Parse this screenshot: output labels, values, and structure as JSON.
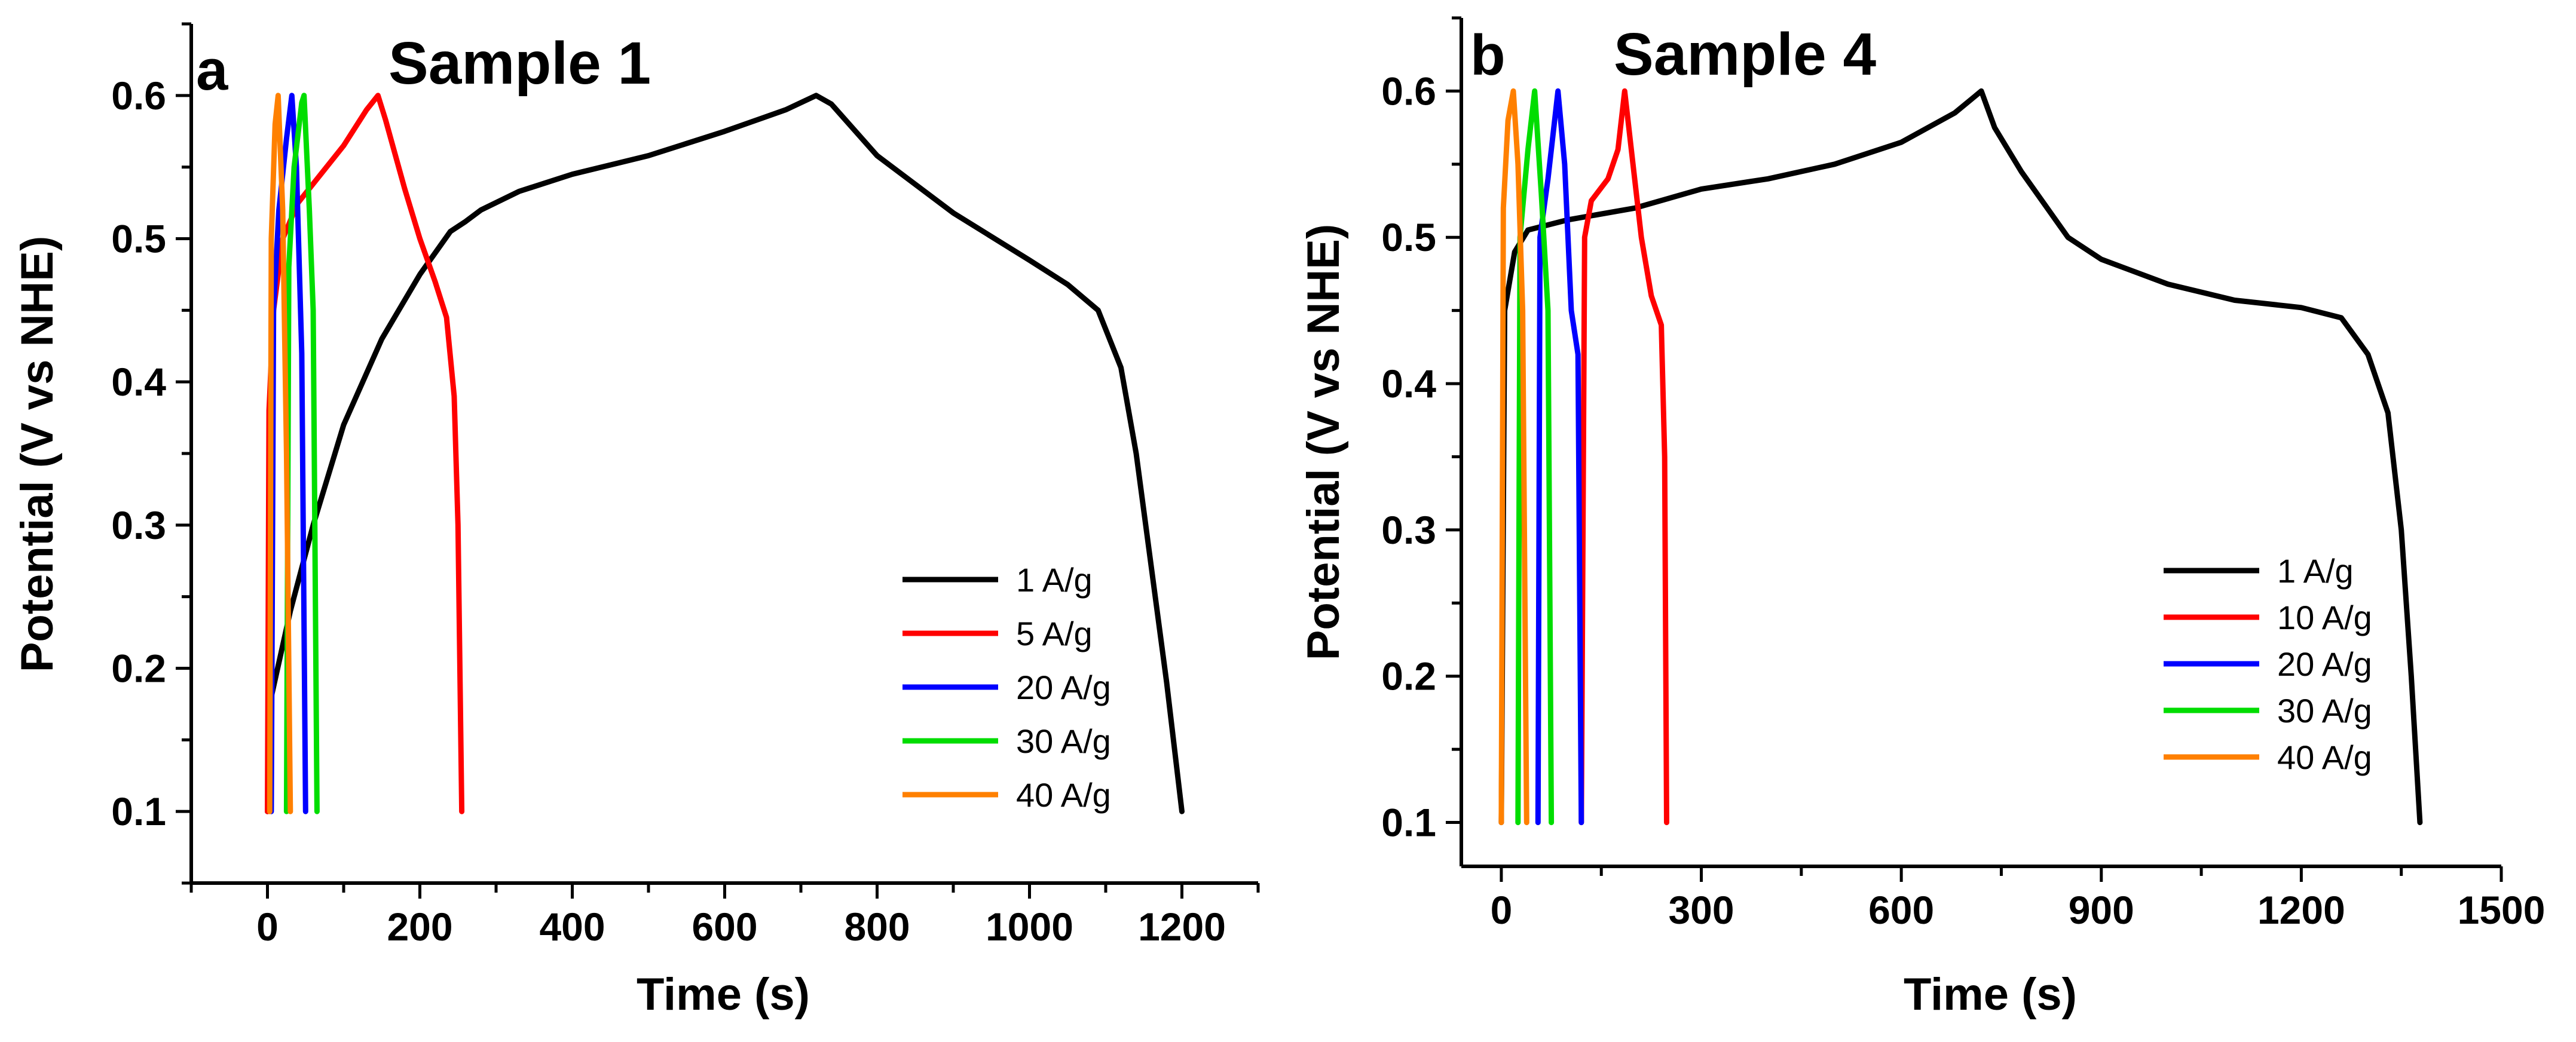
{
  "chart_data": [
    {
      "type": "line",
      "panel_label": "a",
      "title": "Sample 1",
      "xlabel": "Time (s)",
      "ylabel": "Potential (V vs NHE)",
      "xlim": [
        -100,
        1300
      ],
      "ylim": [
        0.05,
        0.65
      ],
      "xticks": [
        0,
        200,
        400,
        600,
        800,
        1000,
        1200
      ],
      "yticks": [
        0.1,
        0.2,
        0.3,
        0.4,
        0.5,
        0.6
      ],
      "xtick_labels": [
        "0",
        "200",
        "400",
        "600",
        "800",
        "1000",
        "1200"
      ],
      "ytick_labels": [
        "0.1",
        "0.2",
        "0.3",
        "0.4",
        "0.5",
        "0.6"
      ],
      "legend_position": "lower-right",
      "series": [
        {
          "name": "1 A/g",
          "color": "#000000",
          "points": [
            [
              0,
              0.1
            ],
            [
              5,
              0.18
            ],
            [
              30,
              0.24
            ],
            [
              60,
              0.3
            ],
            [
              100,
              0.37
            ],
            [
              150,
              0.43
            ],
            [
              200,
              0.475
            ],
            [
              240,
              0.505
            ],
            [
              260,
              0.512
            ],
            [
              280,
              0.52
            ],
            [
              330,
              0.533
            ],
            [
              400,
              0.545
            ],
            [
              500,
              0.558
            ],
            [
              600,
              0.575
            ],
            [
              680,
              0.59
            ],
            [
              720,
              0.6
            ],
            [
              740,
              0.594
            ],
            [
              800,
              0.558
            ],
            [
              900,
              0.518
            ],
            [
              1000,
              0.485
            ],
            [
              1050,
              0.468
            ],
            [
              1090,
              0.45
            ],
            [
              1120,
              0.41
            ],
            [
              1140,
              0.35
            ],
            [
              1160,
              0.27
            ],
            [
              1180,
              0.19
            ],
            [
              1200,
              0.1
            ]
          ]
        },
        {
          "name": "5 A/g",
          "color": "#ff0000",
          "points": [
            [
              0,
              0.1
            ],
            [
              2,
              0.38
            ],
            [
              8,
              0.45
            ],
            [
              20,
              0.5
            ],
            [
              40,
              0.525
            ],
            [
              70,
              0.545
            ],
            [
              100,
              0.565
            ],
            [
              130,
              0.59
            ],
            [
              145,
              0.6
            ],
            [
              155,
              0.583
            ],
            [
              180,
              0.535
            ],
            [
              200,
              0.5
            ],
            [
              220,
              0.47
            ],
            [
              235,
              0.445
            ],
            [
              245,
              0.39
            ],
            [
              250,
              0.3
            ],
            [
              255,
              0.1
            ]
          ]
        },
        {
          "name": "20 A/g",
          "color": "#0000ff",
          "points": [
            [
              5,
              0.1
            ],
            [
              8,
              0.45
            ],
            [
              15,
              0.52
            ],
            [
              25,
              0.57
            ],
            [
              32,
              0.6
            ],
            [
              38,
              0.55
            ],
            [
              45,
              0.42
            ],
            [
              50,
              0.1
            ]
          ]
        },
        {
          "name": "30 A/g",
          "color": "#00dd00",
          "points": [
            [
              25,
              0.1
            ],
            [
              28,
              0.48
            ],
            [
              35,
              0.55
            ],
            [
              45,
              0.595
            ],
            [
              48,
              0.6
            ],
            [
              55,
              0.52
            ],
            [
              60,
              0.45
            ],
            [
              65,
              0.1
            ]
          ]
        },
        {
          "name": "40 A/g",
          "color": "#ff8000",
          "points": [
            [
              3,
              0.1
            ],
            [
              5,
              0.5
            ],
            [
              10,
              0.58
            ],
            [
              14,
              0.6
            ],
            [
              20,
              0.52
            ],
            [
              25,
              0.35
            ],
            [
              30,
              0.1
            ]
          ]
        }
      ]
    },
    {
      "type": "line",
      "panel_label": "b",
      "title": "Sample 4",
      "xlabel": "Time (s)",
      "ylabel": "Potential (V vs NHE)",
      "xlim": [
        -60,
        1500
      ],
      "ylim": [
        0.07,
        0.65
      ],
      "xticks": [
        0,
        300,
        600,
        900,
        1200,
        1500
      ],
      "yticks": [
        0.1,
        0.2,
        0.3,
        0.4,
        0.5,
        0.6
      ],
      "xtick_labels": [
        "0",
        "300",
        "600",
        "900",
        "1200",
        "1500"
      ],
      "ytick_labels": [
        "0.1",
        "0.2",
        "0.3",
        "0.4",
        "0.5",
        "0.6"
      ],
      "legend_position": "lower-right",
      "series": [
        {
          "name": "1 A/g",
          "color": "#000000",
          "points": [
            [
              0,
              0.1
            ],
            [
              5,
              0.45
            ],
            [
              20,
              0.49
            ],
            [
              40,
              0.505
            ],
            [
              100,
              0.512
            ],
            [
              200,
              0.52
            ],
            [
              300,
              0.533
            ],
            [
              400,
              0.54
            ],
            [
              500,
              0.55
            ],
            [
              600,
              0.565
            ],
            [
              680,
              0.585
            ],
            [
              720,
              0.6
            ],
            [
              740,
              0.575
            ],
            [
              780,
              0.545
            ],
            [
              850,
              0.5
            ],
            [
              900,
              0.485
            ],
            [
              1000,
              0.468
            ],
            [
              1100,
              0.457
            ],
            [
              1200,
              0.452
            ],
            [
              1260,
              0.445
            ],
            [
              1300,
              0.42
            ],
            [
              1330,
              0.38
            ],
            [
              1350,
              0.3
            ],
            [
              1365,
              0.2
            ],
            [
              1378,
              0.1
            ]
          ]
        },
        {
          "name": "10 A/g",
          "color": "#ff0000",
          "points": [
            [
              120,
              0.1
            ],
            [
              125,
              0.5
            ],
            [
              135,
              0.525
            ],
            [
              160,
              0.54
            ],
            [
              175,
              0.56
            ],
            [
              185,
              0.6
            ],
            [
              195,
              0.56
            ],
            [
              210,
              0.5
            ],
            [
              225,
              0.46
            ],
            [
              240,
              0.44
            ],
            [
              245,
              0.35
            ],
            [
              248,
              0.1
            ]
          ]
        },
        {
          "name": "20 A/g",
          "color": "#0000ff",
          "points": [
            [
              55,
              0.1
            ],
            [
              58,
              0.5
            ],
            [
              70,
              0.54
            ],
            [
              85,
              0.6
            ],
            [
              95,
              0.55
            ],
            [
              105,
              0.45
            ],
            [
              115,
              0.42
            ],
            [
              120,
              0.1
            ]
          ]
        },
        {
          "name": "30  A/g",
          "color": "#00dd00",
          "points": [
            [
              25,
              0.1
            ],
            [
              28,
              0.5
            ],
            [
              40,
              0.56
            ],
            [
              50,
              0.6
            ],
            [
              60,
              0.53
            ],
            [
              70,
              0.45
            ],
            [
              75,
              0.1
            ]
          ]
        },
        {
          "name": "40 A/g",
          "color": "#ff8000",
          "points": [
            [
              0,
              0.1
            ],
            [
              3,
              0.52
            ],
            [
              10,
              0.58
            ],
            [
              18,
              0.6
            ],
            [
              25,
              0.55
            ],
            [
              32,
              0.45
            ],
            [
              38,
              0.1
            ]
          ]
        }
      ]
    }
  ]
}
